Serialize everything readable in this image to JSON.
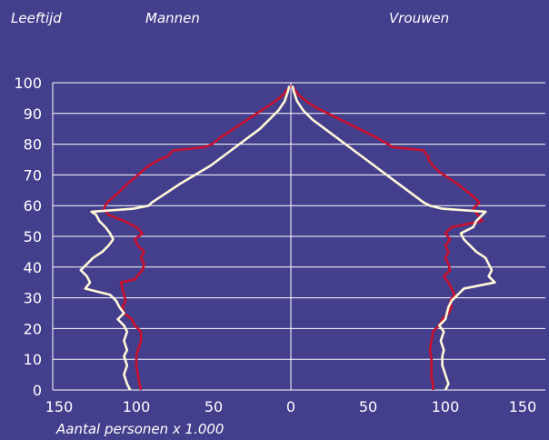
{
  "chart_data": {
    "type": "line",
    "title": "",
    "ylabel": "Leeftijd",
    "xlabel": "Aantal personen x 1.000",
    "left_label": "Mannen",
    "right_label": "Vrouwen",
    "xlim": [
      -150,
      150
    ],
    "ylim": [
      0,
      100
    ],
    "x_ticks": [
      -150,
      -100,
      -50,
      0,
      50,
      100,
      150
    ],
    "x_tick_labels": [
      "150",
      "100",
      "50",
      "0",
      "50",
      "100",
      "150"
    ],
    "y_ticks": [
      0,
      10,
      20,
      30,
      40,
      50,
      60,
      70,
      80,
      90,
      100
    ],
    "y_tick_labels": [
      "0",
      "10",
      "20",
      "30",
      "40",
      "50",
      "60",
      "70",
      "80",
      "90",
      "100"
    ],
    "grid": "horizontal",
    "colors": {
      "background": "#433f8c",
      "series_a": "#c8102e",
      "series_b": "#fff8d8",
      "grid": "#ffffff"
    },
    "series": [
      {
        "color": "#c8102e",
        "men": [
          [
            97,
            0
          ],
          [
            98,
            2
          ],
          [
            99,
            5
          ],
          [
            100,
            8
          ],
          [
            100,
            11
          ],
          [
            99,
            13
          ],
          [
            97,
            16
          ],
          [
            97,
            19
          ],
          [
            101,
            21
          ],
          [
            103,
            23
          ],
          [
            108,
            25
          ],
          [
            109,
            27
          ],
          [
            107,
            29
          ],
          [
            108,
            31
          ],
          [
            109,
            33
          ],
          [
            110,
            35
          ],
          [
            101,
            36
          ],
          [
            98,
            38
          ],
          [
            96,
            39
          ],
          [
            95,
            41
          ],
          [
            97,
            43
          ],
          [
            95,
            45
          ],
          [
            99,
            47
          ],
          [
            101,
            49
          ],
          [
            96,
            51
          ],
          [
            100,
            53
          ],
          [
            108,
            55
          ],
          [
            118,
            57
          ],
          [
            121,
            59
          ],
          [
            119,
            61
          ],
          [
            112,
            64
          ],
          [
            106,
            67
          ],
          [
            99,
            70
          ],
          [
            92,
            73
          ],
          [
            85,
            75
          ],
          [
            80,
            76
          ],
          [
            78,
            77
          ],
          [
            76,
            78
          ],
          [
            56,
            79
          ],
          [
            51,
            80
          ],
          [
            46,
            82
          ],
          [
            40,
            84
          ],
          [
            34,
            86
          ],
          [
            28,
            88
          ],
          [
            22,
            90
          ],
          [
            16,
            92
          ],
          [
            10,
            94
          ],
          [
            5,
            96
          ],
          [
            2,
            98
          ],
          [
            0,
            99
          ]
        ],
        "women": [
          [
            92,
            0
          ],
          [
            92,
            2
          ],
          [
            91,
            4
          ],
          [
            91,
            7
          ],
          [
            91,
            10
          ],
          [
            90,
            13
          ],
          [
            91,
            16
          ],
          [
            92,
            19
          ],
          [
            96,
            21
          ],
          [
            98,
            23
          ],
          [
            102,
            25
          ],
          [
            104,
            27
          ],
          [
            103,
            29
          ],
          [
            106,
            31
          ],
          [
            104,
            33
          ],
          [
            102,
            35
          ],
          [
            99,
            37
          ],
          [
            103,
            39
          ],
          [
            102,
            41
          ],
          [
            100,
            43
          ],
          [
            102,
            45
          ],
          [
            100,
            47
          ],
          [
            103,
            49
          ],
          [
            100,
            51
          ],
          [
            104,
            53
          ],
          [
            124,
            55
          ],
          [
            121,
            57
          ],
          [
            118,
            59
          ],
          [
            122,
            61
          ],
          [
            118,
            63
          ],
          [
            113,
            65
          ],
          [
            108,
            67
          ],
          [
            102,
            69
          ],
          [
            96,
            71
          ],
          [
            92,
            73
          ],
          [
            89,
            75
          ],
          [
            89,
            76
          ],
          [
            87,
            77
          ],
          [
            86,
            78
          ],
          [
            66,
            79
          ],
          [
            63,
            80
          ],
          [
            56,
            82
          ],
          [
            48,
            84
          ],
          [
            40,
            86
          ],
          [
            32,
            88
          ],
          [
            24,
            90
          ],
          [
            16,
            92
          ],
          [
            10,
            94
          ],
          [
            5,
            96
          ],
          [
            2,
            98
          ],
          [
            0,
            99
          ]
        ]
      },
      {
        "color": "#fff8d8",
        "men": [
          [
            104,
            0
          ],
          [
            106,
            2
          ],
          [
            108,
            5
          ],
          [
            106,
            8
          ],
          [
            108,
            11
          ],
          [
            106,
            13
          ],
          [
            108,
            16
          ],
          [
            106,
            19
          ],
          [
            108,
            21
          ],
          [
            112,
            23
          ],
          [
            108,
            25
          ],
          [
            111,
            27
          ],
          [
            113,
            29
          ],
          [
            117,
            31
          ],
          [
            133,
            33
          ],
          [
            130,
            35
          ],
          [
            132,
            37
          ],
          [
            136,
            39
          ],
          [
            132,
            41
          ],
          [
            128,
            43
          ],
          [
            122,
            45
          ],
          [
            118,
            47
          ],
          [
            115,
            49
          ],
          [
            117,
            51
          ],
          [
            120,
            53
          ],
          [
            124,
            55
          ],
          [
            126,
            57
          ],
          [
            129,
            58
          ],
          [
            102,
            59
          ],
          [
            92,
            60
          ],
          [
            90,
            61
          ],
          [
            81,
            64
          ],
          [
            72,
            67
          ],
          [
            62,
            70
          ],
          [
            52,
            73
          ],
          [
            44,
            76
          ],
          [
            36,
            79
          ],
          [
            28,
            82
          ],
          [
            20,
            85
          ],
          [
            14,
            88
          ],
          [
            8,
            91
          ],
          [
            4,
            94
          ],
          [
            2,
            97
          ],
          [
            1,
            99
          ]
        ],
        "women": [
          [
            100,
            0
          ],
          [
            102,
            2
          ],
          [
            100,
            5
          ],
          [
            98,
            8
          ],
          [
            98,
            11
          ],
          [
            99,
            13
          ],
          [
            97,
            16
          ],
          [
            99,
            19
          ],
          [
            96,
            21
          ],
          [
            100,
            23
          ],
          [
            101,
            25
          ],
          [
            102,
            27
          ],
          [
            104,
            29
          ],
          [
            108,
            31
          ],
          [
            112,
            33
          ],
          [
            132,
            35
          ],
          [
            128,
            37
          ],
          [
            130,
            39
          ],
          [
            128,
            41
          ],
          [
            126,
            43
          ],
          [
            120,
            45
          ],
          [
            116,
            47
          ],
          [
            112,
            49
          ],
          [
            110,
            51
          ],
          [
            118,
            53
          ],
          [
            120,
            55
          ],
          [
            124,
            57
          ],
          [
            126,
            58
          ],
          [
            98,
            59
          ],
          [
            90,
            60
          ],
          [
            86,
            61
          ],
          [
            78,
            64
          ],
          [
            70,
            67
          ],
          [
            62,
            70
          ],
          [
            54,
            73
          ],
          [
            46,
            76
          ],
          [
            38,
            79
          ],
          [
            30,
            82
          ],
          [
            22,
            85
          ],
          [
            14,
            88
          ],
          [
            8,
            91
          ],
          [
            4,
            94
          ],
          [
            2,
            97
          ],
          [
            1,
            99
          ]
        ]
      }
    ]
  }
}
